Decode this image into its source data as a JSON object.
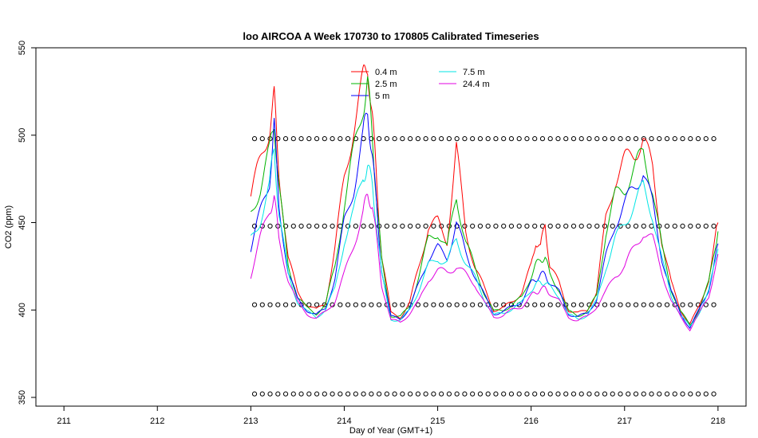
{
  "chart_data": {
    "type": "line",
    "title": "loo AIRCOA A  Week 170730 to 170805  Calibrated Timeseries",
    "xlabel": "Day of Year (GMT+1)",
    "ylabel": "CO2 (ppm)",
    "xlim": [
      210.7,
      218.3
    ],
    "ylim": [
      345,
      550
    ],
    "xticks": [
      211,
      212,
      213,
      214,
      215,
      216,
      217,
      218
    ],
    "yticks": [
      350,
      400,
      450,
      500,
      550
    ],
    "legend_position": "top-center",
    "series": [
      {
        "name": "0.4 m",
        "color": "#ff0000",
        "x": [
          213.0,
          213.1,
          213.2,
          213.25,
          213.3,
          213.4,
          213.5,
          213.6,
          213.7,
          213.8,
          213.9,
          214.0,
          214.1,
          214.2,
          214.25,
          214.3,
          214.35,
          214.4,
          214.5,
          214.6,
          214.7,
          214.8,
          214.9,
          215.0,
          215.1,
          215.2,
          215.3,
          215.4,
          215.5,
          215.6,
          215.7,
          215.8,
          215.9,
          216.0,
          216.05,
          216.1,
          216.15,
          216.2,
          216.3,
          216.4,
          216.5,
          216.6,
          216.7,
          216.8,
          216.9,
          217.0,
          217.1,
          217.2,
          217.3,
          217.4,
          217.5,
          217.6,
          217.7,
          217.8,
          217.9,
          218.0
        ],
        "y": [
          465,
          485,
          505,
          520,
          480,
          430,
          410,
          403,
          400,
          404,
          435,
          475,
          505,
          530,
          543,
          510,
          470,
          432,
          398,
          396,
          404,
          425,
          448,
          450,
          440,
          492,
          445,
          425,
          412,
          400,
          401,
          405,
          410,
          425,
          440,
          435,
          450,
          425,
          415,
          400,
          398,
          400,
          410,
          452,
          475,
          485,
          490,
          498,
          480,
          440,
          415,
          400,
          392,
          402,
          418,
          450
        ]
      },
      {
        "name": "2.5 m",
        "color": "#00b400",
        "x": [
          213.0,
          213.1,
          213.2,
          213.25,
          213.3,
          213.4,
          213.5,
          213.6,
          213.7,
          213.8,
          213.9,
          214.0,
          214.1,
          214.2,
          214.25,
          214.3,
          214.35,
          214.4,
          214.5,
          214.6,
          214.7,
          214.8,
          214.9,
          215.0,
          215.1,
          215.2,
          215.3,
          215.4,
          215.5,
          215.6,
          215.7,
          215.8,
          215.9,
          216.0,
          216.05,
          216.1,
          216.15,
          216.2,
          216.3,
          216.4,
          216.5,
          216.6,
          216.7,
          216.8,
          216.9,
          217.0,
          217.1,
          217.2,
          217.3,
          217.4,
          217.5,
          217.6,
          217.7,
          217.8,
          217.9,
          218.0
        ],
        "y": [
          455,
          470,
          490,
          510,
          470,
          425,
          408,
          401,
          398,
          403,
          425,
          460,
          490,
          518,
          528,
          500,
          462,
          428,
          397,
          396,
          402,
          420,
          440,
          445,
          435,
          465,
          440,
          423,
          410,
          399,
          400,
          403,
          407,
          420,
          425,
          430,
          430,
          420,
          412,
          399,
          397,
          399,
          408,
          445,
          465,
          470,
          480,
          490,
          470,
          435,
          412,
          399,
          391,
          401,
          415,
          445
        ]
      },
      {
        "name": "5 m",
        "color": "#0000ff",
        "x": [
          213.0,
          213.1,
          213.2,
          213.25,
          213.3,
          213.4,
          213.5,
          213.6,
          213.7,
          213.8,
          213.9,
          214.0,
          214.1,
          214.2,
          214.25,
          214.3,
          214.35,
          214.4,
          214.5,
          214.6,
          214.7,
          214.8,
          214.9,
          215.0,
          215.1,
          215.2,
          215.3,
          215.4,
          215.5,
          215.6,
          215.7,
          215.8,
          215.9,
          216.0,
          216.05,
          216.1,
          216.15,
          216.2,
          216.3,
          216.4,
          216.5,
          216.6,
          216.7,
          216.8,
          216.9,
          217.0,
          217.1,
          217.2,
          217.3,
          217.4,
          217.5,
          217.6,
          217.7,
          217.8,
          217.9,
          218.0
        ],
        "y": [
          435,
          455,
          475,
          505,
          460,
          422,
          406,
          400,
          397,
          401,
          418,
          450,
          470,
          498,
          515,
          490,
          455,
          424,
          396,
          395,
          401,
          415,
          430,
          435,
          430,
          450,
          432,
          420,
          408,
          398,
          399,
          402,
          405,
          415,
          418,
          420,
          420,
          416,
          410,
          398,
          396,
          398,
          406,
          430,
          450,
          460,
          470,
          480,
          460,
          430,
          410,
          398,
          390,
          400,
          412,
          438
        ]
      },
      {
        "name": "7.5 m",
        "color": "#00e5e5",
        "x": [
          213.0,
          213.1,
          213.2,
          213.25,
          213.3,
          213.4,
          213.5,
          213.6,
          213.7,
          213.8,
          213.9,
          214.0,
          214.1,
          214.2,
          214.25,
          214.3,
          214.35,
          214.4,
          214.5,
          214.6,
          214.7,
          214.8,
          214.9,
          215.0,
          215.1,
          215.2,
          215.3,
          215.4,
          215.5,
          215.6,
          215.7,
          215.8,
          215.9,
          216.0,
          216.05,
          216.1,
          216.15,
          216.2,
          216.3,
          216.4,
          216.5,
          216.6,
          216.7,
          216.8,
          216.9,
          217.0,
          217.1,
          217.2,
          217.3,
          217.4,
          217.5,
          217.6,
          217.7,
          217.8,
          217.9,
          218.0
        ],
        "y": [
          440,
          452,
          470,
          495,
          455,
          420,
          405,
          399,
          396,
          400,
          412,
          440,
          455,
          478,
          482,
          470,
          448,
          420,
          395,
          394,
          400,
          412,
          425,
          430,
          427,
          440,
          428,
          418,
          406,
          397,
          398,
          401,
          404,
          412,
          414,
          416,
          416,
          413,
          408,
          397,
          395,
          397,
          405,
          425,
          440,
          450,
          460,
          470,
          455,
          428,
          408,
          397,
          390,
          399,
          410,
          435
        ]
      },
      {
        "name": "24.4 m",
        "color": "#e000e0",
        "x": [
          213.0,
          213.1,
          213.2,
          213.25,
          213.3,
          213.4,
          213.5,
          213.6,
          213.7,
          213.8,
          213.9,
          214.0,
          214.1,
          214.2,
          214.25,
          214.3,
          214.35,
          214.4,
          214.5,
          214.6,
          214.7,
          214.8,
          214.9,
          215.0,
          215.1,
          215.2,
          215.3,
          215.4,
          215.5,
          215.6,
          215.7,
          215.8,
          215.9,
          216.0,
          216.05,
          216.1,
          216.15,
          216.2,
          216.3,
          216.4,
          216.5,
          216.6,
          216.7,
          216.8,
          216.9,
          217.0,
          217.1,
          217.2,
          217.3,
          217.4,
          217.5,
          217.6,
          217.7,
          217.8,
          217.9,
          218.0
        ],
        "y": [
          420,
          440,
          458,
          465,
          440,
          418,
          404,
          398,
          395,
          399,
          405,
          420,
          438,
          455,
          465,
          462,
          438,
          415,
          394,
          393,
          398,
          405,
          418,
          422,
          422,
          425,
          420,
          415,
          404,
          396,
          397,
          400,
          402,
          408,
          410,
          412,
          412,
          410,
          405,
          396,
          394,
          396,
          402,
          410,
          420,
          425,
          435,
          445,
          440,
          422,
          405,
          396,
          389,
          398,
          408,
          432
        ]
      }
    ],
    "calibration_points": {
      "x_start": 213.04,
      "x_end": 218.0,
      "step": 0.0833,
      "levels": [
        352,
        403,
        448,
        498
      ]
    }
  }
}
